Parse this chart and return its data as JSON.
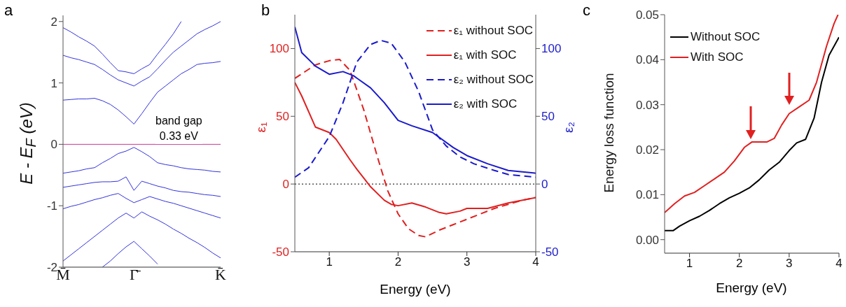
{
  "chart_data": [
    {
      "type": "line",
      "title": "a",
      "ylabel": "E - E$_{F}$ (eV)",
      "categories": [
        "M̄",
        null,
        null,
        null,
        null,
        null,
        null,
        null,
        null,
        "Γ̄",
        null,
        null,
        null,
        null,
        null,
        null,
        null,
        null,
        null,
        null,
        "K̄"
      ],
      "ylim": [
        -2,
        2.1
      ],
      "yticks": [
        -2,
        -1,
        0,
        1,
        2
      ],
      "annotations": [
        "band gap\n0.33 eV"
      ],
      "ref_lines": [
        {
          "axis": "y",
          "value": 0,
          "color": "#cc3399"
        }
      ],
      "series": [
        {
          "color": "#3333dd",
          "values": [
            0.72,
            0.73,
            0.74,
            0.74,
            0.75,
            0.71,
            0.65,
            0.56,
            0.45,
            0.33,
            0.5,
            0.68,
            0.85,
            0.95,
            1.05,
            1.15,
            1.22,
            1.3,
            1.32,
            1.33,
            1.35
          ]
        },
        {
          "color": "#3333dd",
          "values": [
            1.45,
            1.41,
            1.38,
            1.34,
            1.3,
            1.22,
            1.13,
            1.05,
            1.0,
            0.95,
            1.03,
            1.1,
            1.23,
            1.37,
            1.5,
            1.6,
            1.7,
            1.8,
            1.87,
            1.93,
            2.0
          ]
        },
        {
          "color": "#3333dd",
          "values": [
            1.9,
            1.83,
            1.75,
            1.68,
            1.6,
            1.47,
            1.33,
            1.2,
            1.18,
            1.15,
            1.23,
            1.3,
            1.47,
            1.63,
            1.8,
            2.0,
            null,
            null,
            null,
            null,
            null
          ]
        },
        {
          "color": "#3333dd",
          "values": [
            -0.47,
            -0.45,
            -0.43,
            -0.4,
            -0.38,
            -0.3,
            -0.23,
            -0.15,
            -0.11,
            -0.05,
            -0.12,
            -0.2,
            -0.3,
            -0.33,
            -0.35,
            -0.38,
            -0.4,
            -0.41,
            -0.42,
            -0.44,
            -0.45
          ]
        },
        {
          "color": "#3333dd",
          "values": [
            -0.7,
            -0.68,
            -0.66,
            -0.64,
            -0.62,
            -0.61,
            -0.61,
            -0.6,
            -0.53,
            -0.75,
            -0.6,
            -0.64,
            -0.68,
            -0.71,
            -0.75,
            -0.77,
            -0.78,
            -0.8,
            -0.82,
            -0.83,
            -0.85
          ]
        },
        {
          "color": "#3333dd",
          "values": [
            -1.05,
            -1.01,
            -0.98,
            -0.94,
            -0.9,
            -0.87,
            -0.83,
            -0.8,
            -0.88,
            -0.95,
            -0.9,
            -0.85,
            -0.89,
            -0.93,
            -0.96,
            -1.0,
            -1.04,
            -1.08,
            -1.12,
            -1.16,
            -1.2
          ]
        },
        {
          "color": "#3333dd",
          "values": [
            -1.9,
            -1.8,
            -1.7,
            -1.6,
            -1.5,
            -1.4,
            -1.3,
            -1.2,
            -1.12,
            -1.2,
            -1.1,
            -1.17,
            -1.23,
            -1.3,
            -1.38,
            -1.45,
            -1.53,
            -1.6,
            -1.68,
            -1.77,
            -1.85
          ]
        },
        {
          "color": "#3333dd",
          "values": [
            null,
            null,
            null,
            null,
            null,
            -2,
            -1.9,
            -1.78,
            -1.67,
            -1.58,
            -1.7,
            -1.82,
            -1.95,
            null,
            null,
            null,
            null,
            null,
            null,
            null,
            null
          ]
        }
      ]
    },
    {
      "type": "line",
      "title": "b",
      "xlabel": "Energy (eV)",
      "ylabel": "ε₁",
      "y2label": "ε₂",
      "xlim": [
        0.5,
        4
      ],
      "xticks": [
        1,
        2,
        3,
        4
      ],
      "ylim": [
        -50,
        125
      ],
      "yticks": [
        -50,
        0,
        50,
        100
      ],
      "y2lim": [
        -50,
        125
      ],
      "y2ticks": [
        -50,
        0,
        50,
        100
      ],
      "legend": "top right",
      "ref_lines": [
        {
          "axis": "y",
          "value": 0,
          "color": "#000000",
          "line_style": "dotted"
        }
      ],
      "series": [
        {
          "name": "ε₁ without SOC",
          "color": "#e02020",
          "line_style": "dashed",
          "x": [
            0.5,
            0.8,
            1.0,
            1.15,
            1.3,
            1.5,
            1.7,
            1.85,
            2.0,
            2.15,
            2.3,
            2.4,
            2.6,
            2.8,
            3.0,
            3.2,
            3.4,
            3.6,
            3.8,
            4
          ],
          "values": [
            78,
            88,
            91,
            92,
            84,
            55,
            20,
            -5,
            -22,
            -33,
            -38,
            -39,
            -34,
            -30,
            -26,
            -22,
            -18,
            -15,
            -12,
            -10
          ]
        },
        {
          "name": "ε₁ with SOC",
          "color": "#e02020",
          "x": [
            0.5,
            0.6,
            0.8,
            1.0,
            1.1,
            1.3,
            1.4,
            1.6,
            1.8,
            1.9,
            2.0,
            2.2,
            2.4,
            2.6,
            2.7,
            2.9,
            3.0,
            3.3,
            3.6,
            4
          ],
          "values": [
            75,
            65,
            42,
            38,
            33,
            18,
            11,
            -2,
            -12,
            -15,
            -16,
            -14,
            -17,
            -21,
            -22,
            -20,
            -18,
            -18,
            -14,
            -10
          ]
        },
        {
          "name": "ε₂ without SOC",
          "color": "#1a1acc",
          "line_style": "dashed",
          "axis": "y2",
          "x": [
            0.5,
            0.7,
            1.0,
            1.2,
            1.4,
            1.6,
            1.75,
            1.9,
            2.1,
            2.3,
            2.5,
            2.7,
            2.9,
            3.1,
            3.4,
            3.6,
            4
          ],
          "values": [
            5,
            12,
            35,
            60,
            90,
            103,
            106,
            104,
            90,
            68,
            40,
            28,
            20,
            15,
            10,
            7,
            5
          ]
        },
        {
          "name": "ε₂ with SOC",
          "color": "#1a1acc",
          "axis": "y2",
          "x": [
            0.5,
            0.6,
            0.8,
            1.0,
            1.2,
            1.35,
            1.6,
            1.8,
            2.0,
            2.2,
            2.5,
            2.8,
            3.0,
            3.3,
            3.6,
            4
          ],
          "values": [
            116,
            97,
            87,
            81,
            83,
            80,
            71,
            60,
            47,
            43,
            38,
            27,
            21,
            15,
            10,
            8
          ]
        }
      ]
    },
    {
      "type": "line",
      "title": "c",
      "xlabel": "Energy (eV)",
      "ylabel": "Energy loss function",
      "xlim": [
        0.5,
        4
      ],
      "xticks": [
        1,
        2,
        3,
        4
      ],
      "ylim": [
        -0.003,
        0.05
      ],
      "yticks": [
        {
          "value": 0,
          "label": "0.00"
        },
        {
          "value": 0.01,
          "label": "0.01"
        },
        {
          "value": 0.02,
          "label": "0.02"
        },
        {
          "value": 0.03,
          "label": "0.03"
        },
        {
          "value": 0.04,
          "label": "0.04"
        },
        {
          "value": 0.05,
          "label": "0.05"
        }
      ],
      "legend": "top left",
      "series": [
        {
          "name": "Without SOC",
          "color": "#000000",
          "x": [
            0.5,
            0.67,
            0.8,
            1.0,
            1.2,
            1.4,
            1.6,
            1.8,
            2.0,
            2.2,
            2.4,
            2.6,
            2.8,
            3.0,
            3.15,
            3.33,
            3.5,
            3.65,
            3.8,
            4
          ],
          "values": [
            0.002,
            0.002,
            0.003,
            0.0042,
            0.0052,
            0.0065,
            0.008,
            0.0093,
            0.0103,
            0.0115,
            0.0133,
            0.0155,
            0.0172,
            0.0198,
            0.0215,
            0.0223,
            0.027,
            0.035,
            0.041,
            0.045
          ]
        },
        {
          "name": "With SOC",
          "color": "#e02020",
          "x": [
            0.5,
            0.7,
            0.9,
            1.1,
            1.3,
            1.5,
            1.7,
            1.9,
            2.1,
            2.25,
            2.55,
            2.7,
            2.85,
            3.0,
            3.2,
            3.4,
            3.55,
            3.75,
            3.9,
            3.98
          ],
          "values": [
            0.006,
            0.008,
            0.0097,
            0.0105,
            0.012,
            0.0135,
            0.015,
            0.0175,
            0.0205,
            0.0217,
            0.0217,
            0.0225,
            0.0255,
            0.028,
            0.0295,
            0.031,
            0.035,
            0.043,
            0.048,
            0.05
          ]
        }
      ]
    }
  ]
}
